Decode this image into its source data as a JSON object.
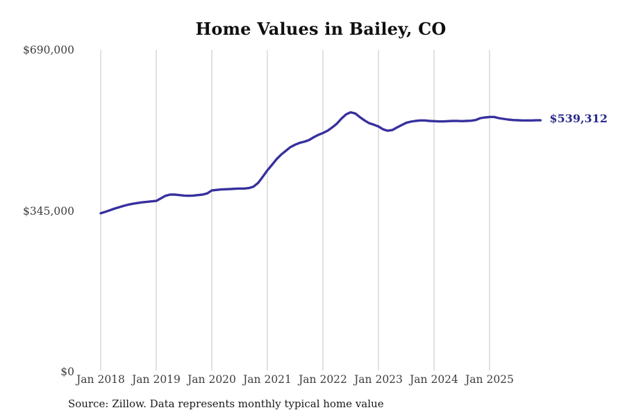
{
  "chart_data": {
    "type": "line",
    "title": "Home Values in Bailey, CO",
    "source_note": "Source: Zillow. Data represents monthly typical home value",
    "end_label": "$539,312",
    "final_value": 539312,
    "x_interval": "monthly",
    "x_range": {
      "start": "Jan 2018",
      "end": "Dec 2025"
    },
    "x_tick_labels": [
      "Jan 2018",
      "Jan 2019",
      "Jan 2020",
      "Jan 2021",
      "Jan 2022",
      "Jan 2023",
      "Jan 2024",
      "Jan 2025"
    ],
    "y_ticks": [
      {
        "label": "$0",
        "value": 0
      },
      {
        "label": "$345,000",
        "value": 345000
      },
      {
        "label": "$690,000",
        "value": 690000
      }
    ],
    "ylim": [
      0,
      690000
    ],
    "grid": "vertical-only",
    "legend": "none",
    "line_color": "#37309e",
    "end_label_color": "#2b2a8c",
    "series": [
      {
        "name": "Typical home value",
        "values": [
          340000,
          343000,
          346500,
          350000,
          353000,
          356000,
          358500,
          360500,
          362000,
          363500,
          364500,
          365500,
          366500,
          372000,
          377500,
          380000,
          380000,
          379000,
          378000,
          377500,
          378000,
          379000,
          380000,
          382500,
          389000,
          390000,
          391000,
          391500,
          392000,
          392500,
          393000,
          393000,
          394000,
          397000,
          405000,
          418000,
          432000,
          444000,
          456000,
          466000,
          474000,
          482000,
          487000,
          491000,
          493500,
          497000,
          503000,
          508000,
          512000,
          517000,
          524000,
          532000,
          543000,
          552000,
          556500,
          554000,
          546000,
          539000,
          533000,
          530000,
          526000,
          520000,
          517000,
          518500,
          524000,
          529000,
          534000,
          536500,
          538000,
          539000,
          539000,
          538000,
          537500,
          537000,
          537000,
          537500,
          538000,
          538000,
          537500,
          538000,
          538500,
          540000,
          544000,
          545500,
          546500,
          546500,
          544000,
          542500,
          541000,
          540000,
          539500,
          539000,
          539000,
          539000,
          539300,
          539312
        ]
      }
    ]
  }
}
